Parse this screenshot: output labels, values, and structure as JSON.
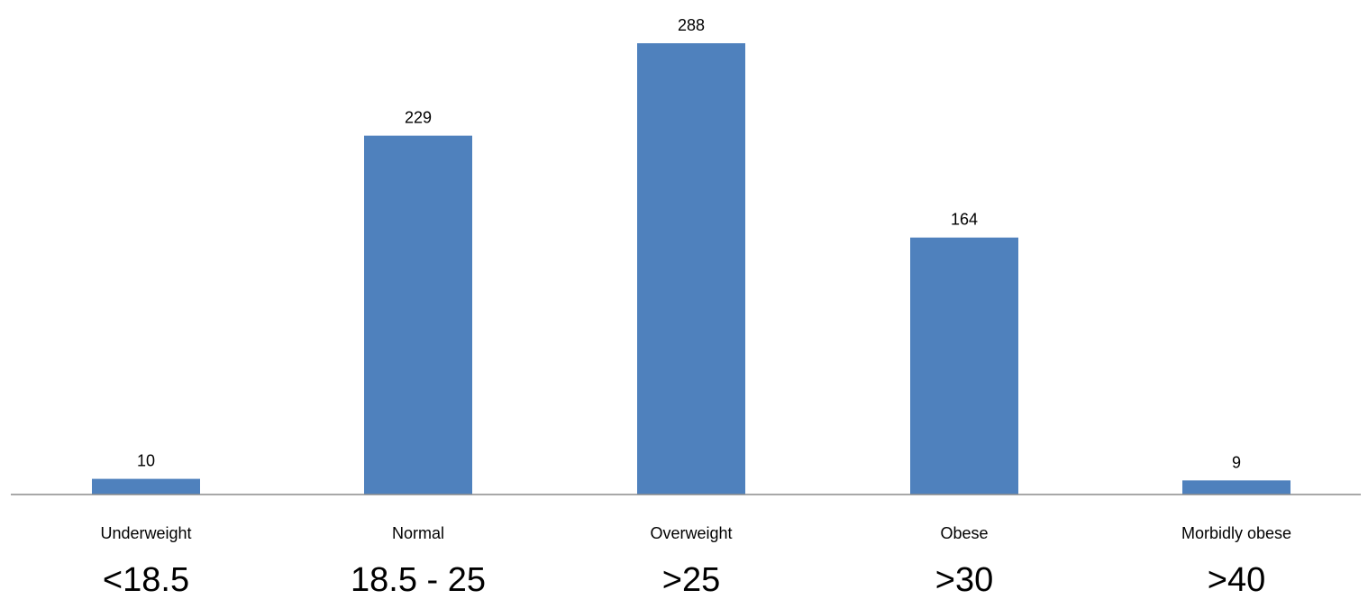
{
  "chart_data": {
    "type": "bar",
    "categories": [
      "Underweight",
      "Normal",
      "Overweight",
      "Obese",
      "Morbidly obese"
    ],
    "ranges": [
      "<18.5",
      "18.5 - 25",
      ">25",
      ">30",
      ">40"
    ],
    "values": [
      10,
      229,
      288,
      164,
      9
    ],
    "ylim": [
      0,
      288
    ],
    "grid": false,
    "legend": "none",
    "colors": {
      "bar": "#4f81bd",
      "axis": "#8c8c8c"
    }
  }
}
